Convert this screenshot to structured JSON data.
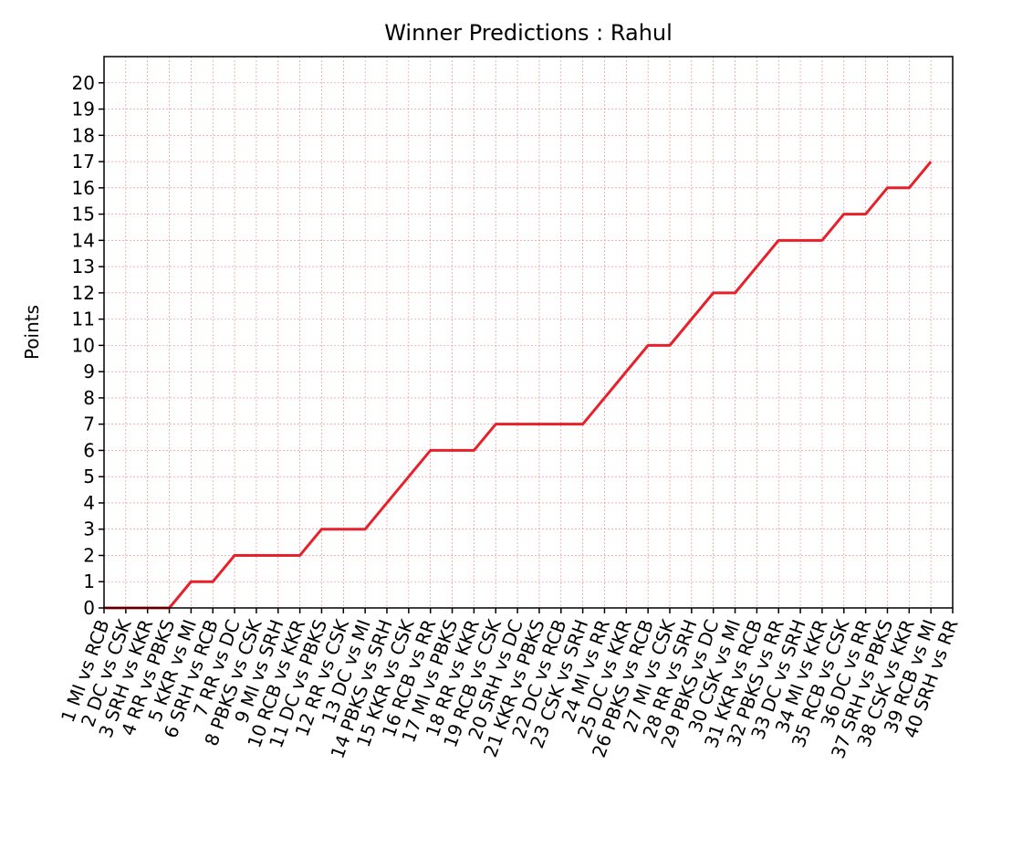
{
  "chart_data": {
    "type": "line",
    "title": "Winner Predictions : Rahul",
    "ylabel": "Points",
    "categories": [
      "1 MI vs RCB",
      "2 DC vs CSK",
      "3 SRH vs KKR",
      "4 RR vs PBKS",
      "5 KKR vs MI",
      "6 SRH vs RCB",
      "7 RR vs DC",
      "8 PBKS vs CSK",
      "9 MI vs SRH",
      "10 RCB vs KKR",
      "11 DC vs PBKS",
      "12 RR vs CSK",
      "13 DC vs MI",
      "14 PBKS vs SRH",
      "15 KKR vs CSK",
      "16 RCB vs RR",
      "17 MI vs PBKS",
      "18 RR vs KKR",
      "19 RCB vs CSK",
      "20 SRH vs DC",
      "21 KKR vs PBKS",
      "22 DC vs RCB",
      "23 CSK vs SRH",
      "24 MI vs RR",
      "25 DC vs KKR",
      "26 PBKS vs RCB",
      "27 MI vs CSK",
      "28 RR vs SRH",
      "29 PBKS vs DC",
      "30 CSK vs MI",
      "31 KKR vs RCB",
      "32 PBKS vs RR",
      "33 DC vs SRH",
      "34 MI vs KKR",
      "35 RCB vs CSK",
      "36 DC vs RR",
      "37 SRH vs PBKS",
      "38 CSK vs KKR",
      "39 RCB vs MI",
      "40 SRH vs RR"
    ],
    "series": [
      {
        "name": "Rahul",
        "color": "#e8202a",
        "values": [
          0,
          0,
          0,
          0,
          1,
          1,
          2,
          2,
          2,
          2,
          3,
          3,
          3,
          4,
          5,
          6,
          6,
          6,
          7,
          7,
          7,
          7,
          7,
          8,
          9,
          10,
          10,
          11,
          12,
          12,
          13,
          14,
          14,
          14,
          15,
          15,
          16,
          16,
          17,
          null
        ]
      }
    ],
    "ylim": [
      0,
      21
    ],
    "yticks": [
      0,
      1,
      2,
      3,
      4,
      5,
      6,
      7,
      8,
      9,
      10,
      11,
      12,
      13,
      14,
      15,
      16,
      17,
      18,
      19,
      20
    ],
    "grid": true
  }
}
